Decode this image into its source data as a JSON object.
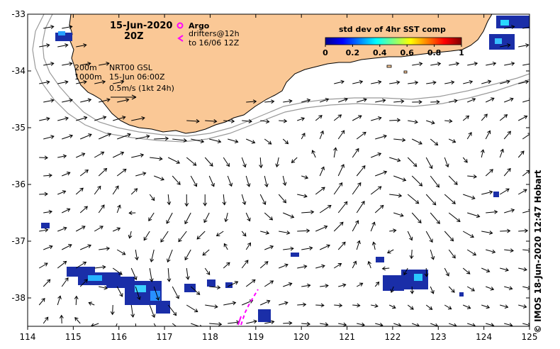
{
  "title": {
    "date": "15-Jun-2020",
    "time": "20Z"
  },
  "legend": {
    "argo": "Argo",
    "drifters_line1": "drifters@12h",
    "drifters_line2": "to 16/06 12Z",
    "colorbar_title": "std dev of 4hr SST comp",
    "colorbar_ticks": [
      "0",
      "0.2",
      "0.4",
      "0.6",
      "0.8",
      "1"
    ]
  },
  "info": {
    "contour_200": "200m",
    "contour_1000": "1000m",
    "product": "NRT00 GSL",
    "datetime": "15-Jun 06:00Z",
    "scale": "0.5m/s (1kt 24h)"
  },
  "credit": "© IMOS 18-Jun-2020 12:47 Hobart",
  "chart_data": {
    "type": "map",
    "xlim": [
      114,
      125
    ],
    "ylim": [
      -38.5,
      -33
    ],
    "x_ticks": [
      "114",
      "115",
      "116",
      "117",
      "118",
      "119",
      "120",
      "121",
      "122",
      "123",
      "124",
      "125"
    ],
    "y_ticks": [
      "-33",
      "-34",
      "-35",
      "-36",
      "-37",
      "-38"
    ],
    "colorbar_range": [
      0,
      1
    ],
    "colors": {
      "land": "#fac896",
      "argo": "#ff00ff",
      "drifter": "#ff00ff",
      "isobath": "#9a9a9a"
    }
  }
}
